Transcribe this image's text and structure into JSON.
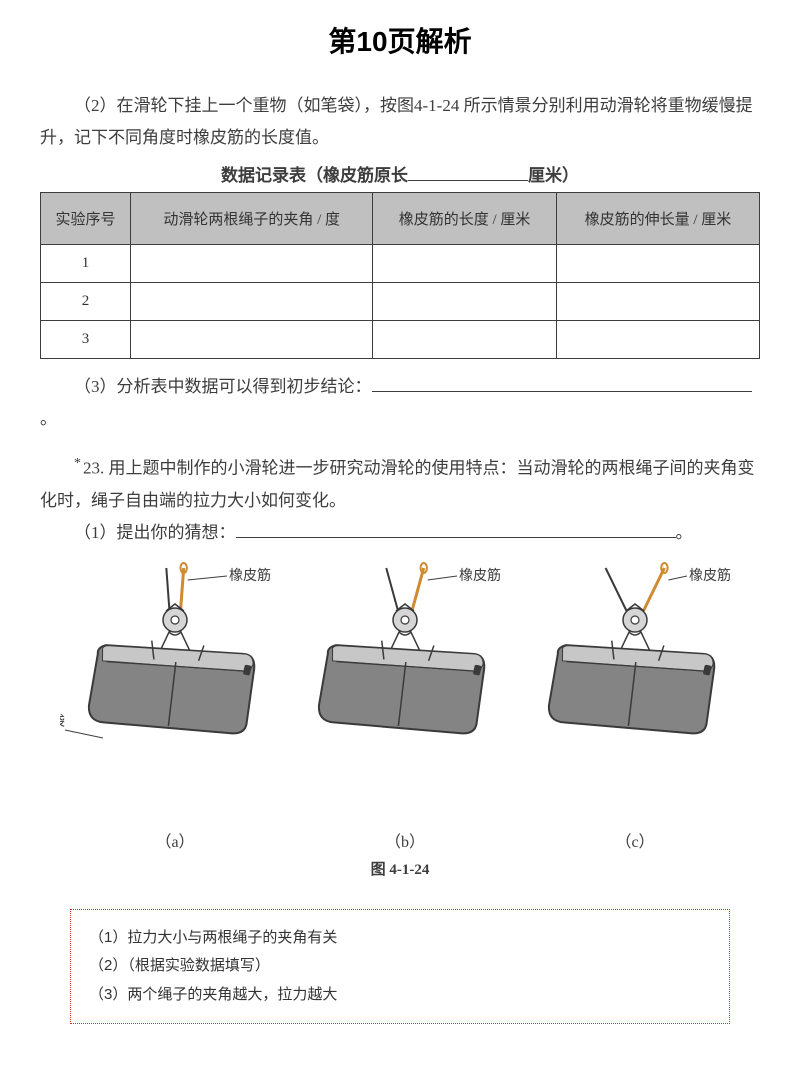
{
  "title": "第10页解析",
  "section1": {
    "para": "（2）在滑轮下挂上一个重物（如笔袋），按图4-1-24 所示情景分别利用动滑轮将重物缓慢提升，记下不同角度时橡皮筋的长度值。",
    "table_title_prefix": "数据记录表（橡皮筋原长",
    "table_title_suffix": "厘米）",
    "columns": [
      "实验序号",
      "动滑轮两根绳子的夹角 / 度",
      "橡皮筋的长度 / 厘米",
      "橡皮筋的伸长量 / 厘米"
    ],
    "rows": [
      [
        "1",
        "",
        "",
        ""
      ],
      [
        "2",
        "",
        "",
        ""
      ],
      [
        "3",
        "",
        "",
        ""
      ]
    ],
    "conclusion_prefix": "（3）分析表中数据可以得到初步结论："
  },
  "section2": {
    "number_prefix": "*",
    "number": "23.",
    "body": "用上题中制作的小滑轮进一步研究动滑轮的使用特点：当动滑轮的两根绳子间的夹角变化时，绳子自由端的拉力大小如何变化。",
    "q1_prefix": "（1）提出你的猜想："
  },
  "figure": {
    "label_rubber": "橡皮筋",
    "label_bag": "笔袋",
    "labels": [
      "（a）",
      "（b）",
      "（c）"
    ],
    "caption": "图 4-1-24",
    "angles": [
      10,
      22,
      36
    ],
    "style": {
      "rope_color": "#3a3a3a",
      "rubber_color": "#d08a30",
      "pulley_fill": "#d6d6d6",
      "pulley_stroke": "#3a3a3a",
      "bag_fill": "#848484",
      "bag_stroke": "#3a3a3a",
      "bag_highlight": "#c7c7c7"
    }
  },
  "answers": {
    "line1": "（1）拉力大小与两根绳子的夹角有关",
    "line2": "（2）（根据实验数据填写）",
    "line3": "（3）两个绳子的夹角越大，拉力越大"
  }
}
